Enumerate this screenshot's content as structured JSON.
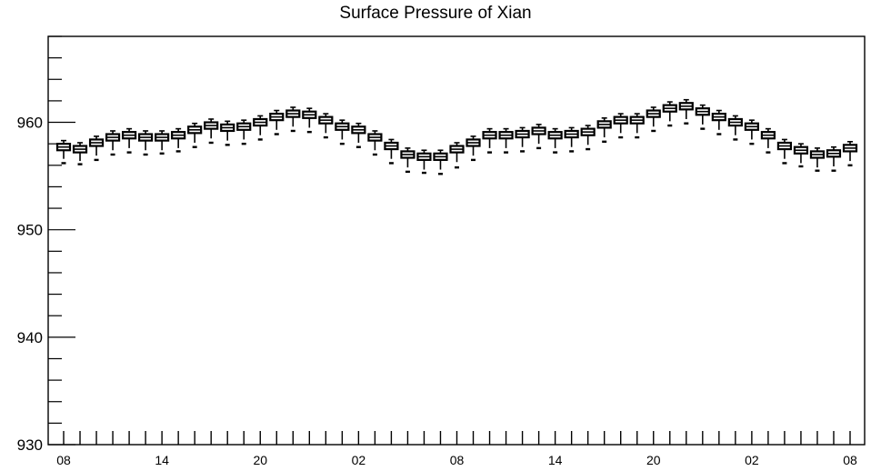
{
  "chart_data": {
    "type": "box",
    "title": "Surface Pressure of Xian",
    "xlabel": "",
    "ylabel": "",
    "ylim": [
      930,
      968
    ],
    "y_ticks": [
      930,
      940,
      950,
      960
    ],
    "x_tick_labels": [
      "08",
      "14",
      "20",
      "02",
      "08",
      "14",
      "20",
      "02",
      "08"
    ],
    "x_range_hours": [
      0,
      48
    ],
    "grid": false,
    "legend": "none",
    "series": [
      {
        "hours": [
          0,
          1,
          2,
          3,
          4,
          5,
          6,
          7,
          8,
          9,
          10,
          11,
          12,
          13,
          14,
          15,
          16,
          17,
          18,
          19,
          20,
          21,
          22,
          23,
          24,
          25,
          26,
          27,
          28,
          29,
          30,
          31,
          32,
          33,
          34,
          35,
          36,
          37,
          38,
          39,
          40,
          41,
          42,
          43,
          44,
          45,
          46,
          47,
          48
        ],
        "median": [
          957.7,
          957.5,
          958.1,
          958.6,
          958.8,
          958.6,
          958.6,
          958.8,
          959.3,
          959.7,
          959.5,
          959.6,
          960.0,
          960.5,
          960.8,
          960.7,
          960.2,
          959.6,
          959.3,
          958.6,
          957.8,
          957.0,
          956.8,
          956.8,
          957.5,
          958.1,
          958.8,
          958.8,
          958.9,
          959.2,
          958.8,
          958.9,
          959.1,
          959.8,
          960.2,
          960.2,
          960.8,
          961.3,
          961.5,
          961.0,
          960.5,
          960.0,
          959.6,
          958.8,
          957.8,
          957.4,
          957.0,
          957.1,
          957.6
        ],
        "q1": [
          957.4,
          957.2,
          957.8,
          958.3,
          958.5,
          958.3,
          958.3,
          958.5,
          959.0,
          959.4,
          959.2,
          959.3,
          959.7,
          960.2,
          960.5,
          960.4,
          959.9,
          959.3,
          959.0,
          958.3,
          957.5,
          956.7,
          956.5,
          956.5,
          957.2,
          957.8,
          958.5,
          958.5,
          958.6,
          958.9,
          958.5,
          958.6,
          958.8,
          959.5,
          959.9,
          959.9,
          960.5,
          961.0,
          961.2,
          960.7,
          960.2,
          959.7,
          959.3,
          958.5,
          957.5,
          957.1,
          956.7,
          956.8,
          957.3
        ],
        "q3": [
          958.0,
          957.8,
          958.4,
          958.9,
          959.1,
          958.9,
          958.9,
          959.1,
          959.6,
          960.0,
          959.8,
          959.9,
          960.3,
          960.8,
          961.1,
          961.0,
          960.5,
          959.9,
          959.6,
          958.9,
          958.1,
          957.3,
          957.1,
          957.1,
          957.8,
          958.4,
          959.1,
          959.1,
          959.2,
          959.5,
          959.1,
          959.2,
          959.4,
          960.1,
          960.5,
          960.5,
          961.1,
          961.6,
          961.8,
          961.3,
          960.8,
          960.3,
          959.9,
          959.1,
          958.1,
          957.7,
          957.3,
          957.4,
          957.9
        ],
        "whisker_low": [
          956.6,
          956.4,
          956.9,
          957.4,
          957.6,
          957.4,
          957.4,
          957.6,
          958.1,
          958.5,
          958.3,
          958.4,
          958.8,
          959.3,
          959.6,
          959.5,
          959.0,
          958.4,
          958.1,
          957.4,
          956.6,
          955.8,
          955.6,
          955.6,
          956.3,
          956.9,
          957.6,
          957.6,
          957.7,
          958.0,
          957.6,
          957.7,
          957.9,
          958.6,
          959.0,
          959.0,
          959.6,
          960.1,
          960.3,
          959.8,
          959.3,
          958.8,
          958.4,
          957.6,
          956.6,
          956.2,
          955.8,
          955.9,
          956.4
        ],
        "whisker_high": [
          958.3,
          958.1,
          958.7,
          959.2,
          959.4,
          959.2,
          959.2,
          959.4,
          959.9,
          960.3,
          960.1,
          960.2,
          960.6,
          961.1,
          961.4,
          961.3,
          960.8,
          960.2,
          959.9,
          959.2,
          958.4,
          957.6,
          957.4,
          957.4,
          958.1,
          958.7,
          959.4,
          959.4,
          959.5,
          959.8,
          959.4,
          959.5,
          959.7,
          960.4,
          960.8,
          960.8,
          961.4,
          961.9,
          962.1,
          961.6,
          961.1,
          960.6,
          960.2,
          959.4,
          958.4,
          958.0,
          957.6,
          957.7,
          958.2
        ],
        "outlier": [
          956.2,
          956.1,
          956.5,
          957.0,
          957.2,
          957.0,
          957.1,
          957.3,
          957.7,
          958.1,
          957.9,
          958.0,
          958.4,
          958.9,
          959.2,
          959.1,
          958.6,
          958.0,
          957.7,
          957.0,
          956.2,
          955.4,
          955.3,
          955.2,
          955.8,
          956.5,
          957.2,
          957.2,
          957.3,
          957.6,
          957.2,
          957.3,
          957.5,
          958.2,
          958.6,
          958.6,
          959.2,
          959.7,
          959.9,
          959.4,
          958.9,
          958.4,
          958.0,
          957.2,
          956.2,
          955.9,
          955.5,
          955.5,
          956.0
        ]
      }
    ]
  }
}
